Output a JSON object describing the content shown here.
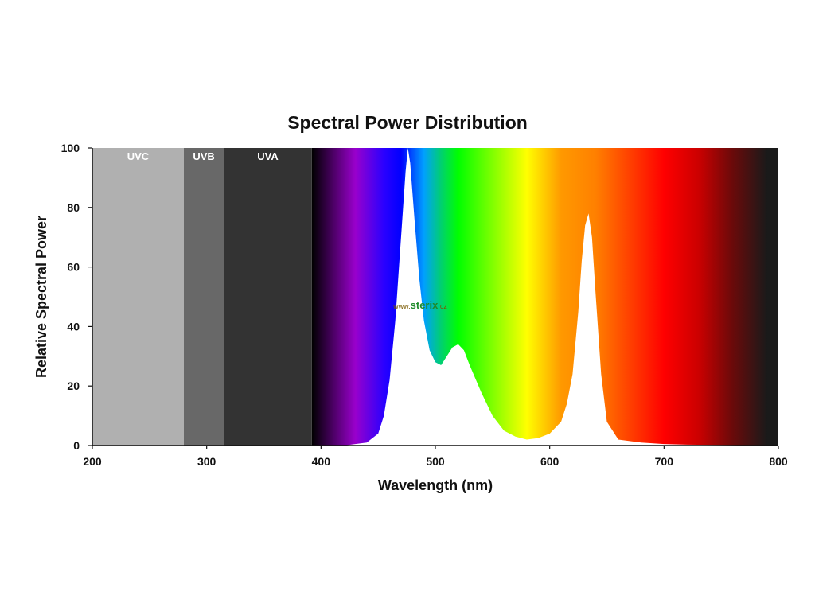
{
  "chart_data": {
    "type": "area",
    "title": "Spectral Power Distribution",
    "xlabel": "Wavelength (nm)",
    "ylabel": "Relative Spectral Power",
    "xlim": [
      200,
      800
    ],
    "ylim": [
      0,
      100
    ],
    "xticks": [
      "200",
      "300",
      "400",
      "500",
      "600",
      "700",
      "800"
    ],
    "yticks": [
      "0",
      "20",
      "40",
      "60",
      "80",
      "100"
    ],
    "grid": false,
    "bands": [
      {
        "name": "UVC",
        "range": [
          200,
          280
        ],
        "color": "#b0b0b0"
      },
      {
        "name": "UVB",
        "range": [
          280,
          315
        ],
        "color": "#686868"
      },
      {
        "name": "UVA",
        "range": [
          315,
          392
        ],
        "color": "#333333"
      }
    ],
    "series": [
      {
        "x": [
          390,
          420,
          440,
          450,
          455,
          460,
          465,
          470,
          474,
          476,
          478,
          482,
          486,
          490,
          495,
          500,
          505,
          510,
          515,
          520,
          525,
          530,
          540,
          550,
          560,
          570,
          580,
          590,
          600,
          610,
          615,
          620,
          625,
          628,
          631,
          634,
          637,
          640,
          645,
          650,
          660,
          680,
          700,
          720,
          800
        ],
        "y": [
          0,
          0,
          1,
          4,
          10,
          22,
          42,
          70,
          92,
          100,
          95,
          75,
          56,
          42,
          32,
          28,
          27,
          30,
          33,
          34,
          32,
          27,
          18,
          10,
          5,
          3,
          2,
          2.5,
          4,
          8,
          14,
          24,
          45,
          62,
          74,
          78,
          70,
          52,
          24,
          8,
          2,
          1,
          0.5,
          0.3,
          0
        ]
      }
    ],
    "visible_spectrum_colors": [
      "#000000",
      "#9900cc",
      "#0000ff",
      "#00ff00",
      "#ffff00",
      "#ff8000",
      "#ff0000",
      "#1a1a1a"
    ],
    "watermark": {
      "prefix": "www.",
      "brand": "sterix",
      "suffix": ".cz"
    }
  }
}
